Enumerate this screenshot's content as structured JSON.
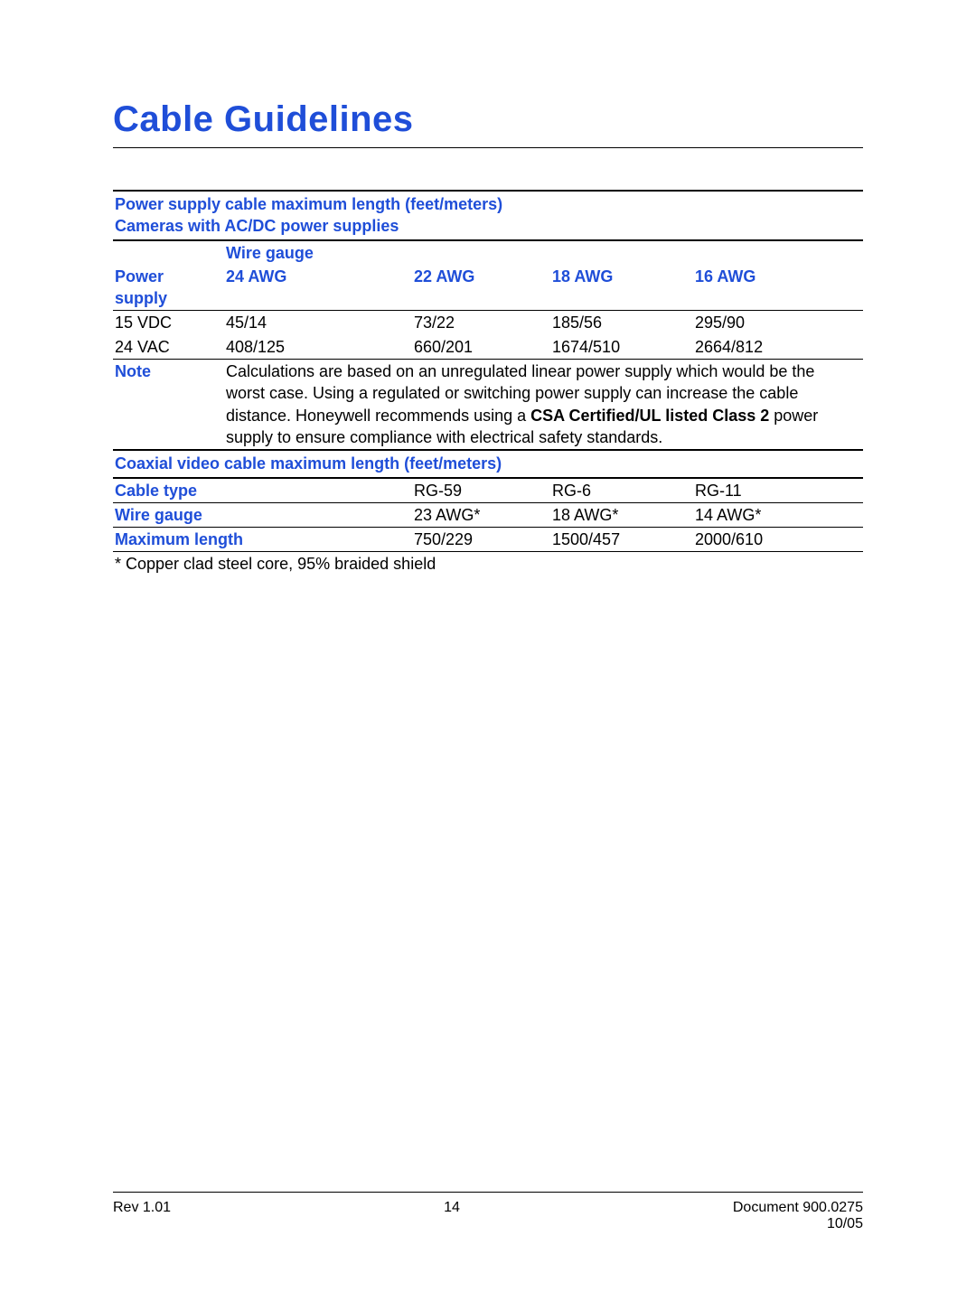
{
  "title": "Cable Guidelines",
  "colors": {
    "accent": "#1f4ed8",
    "text": "#000000",
    "background": "#ffffff"
  },
  "typography": {
    "title_fontsize": 40,
    "body_fontsize": 18,
    "footer_fontsize": 16,
    "font_family": "Arial, Helvetica, sans-serif"
  },
  "table1": {
    "header_line1": "Power supply cable maximum length (feet/meters)",
    "header_line2": "Cameras with AC/DC power supplies",
    "wire_gauge_label": "Wire gauge",
    "power_supply_label": "Power supply",
    "gauges": [
      "24 AWG",
      "22 AWG",
      "18 AWG",
      "16 AWG"
    ],
    "rows": [
      {
        "label": "15 VDC",
        "values": [
          "45/14",
          "73/22",
          "185/56",
          "295/90"
        ]
      },
      {
        "label": "24 VAC",
        "values": [
          "408/125",
          "660/201",
          "1674/510",
          "2664/812"
        ]
      }
    ],
    "note_label": "Note",
    "note_text_pre": "Calculations are based on an unregulated linear power supply which would be the worst case. Using a regulated or switching power supply can increase the cable distance. Honeywell recommends using a ",
    "note_bold": "CSA Certified/UL listed Class 2",
    "note_text_post": " power supply to ensure compliance with electrical safety standards."
  },
  "table2": {
    "header": "Coaxial video cable maximum length (feet/meters)",
    "rows": [
      {
        "label": "Cable type",
        "values": [
          "RG-59",
          "RG-6",
          "RG-11"
        ]
      },
      {
        "label": "Wire gauge",
        "values": [
          "23 AWG*",
          "18 AWG*",
          "14 AWG*"
        ]
      },
      {
        "label": "Maximum length",
        "values": [
          "750/229",
          "1500/457",
          "2000/610"
        ]
      }
    ],
    "footnote": "* Copper clad steel core, 95% braided shield"
  },
  "footer": {
    "rev": "Rev 1.01",
    "page": "14",
    "doc": "Document 900.0275",
    "date": "10/05"
  }
}
